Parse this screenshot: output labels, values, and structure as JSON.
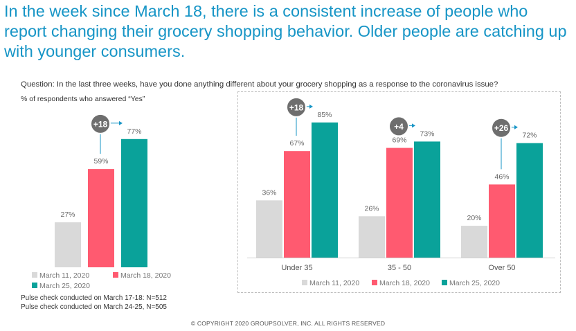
{
  "headline": "In the week since March 18, there is a consistent increase of people who report changing their grocery shopping behavior. Older people are catching up with younger consumers.",
  "question": "Question: In the last three weeks, have you done anything different about your grocery shopping as a response to the coronavirus issue?",
  "subquestion": "% of respondents who answered “Yes”",
  "legend": [
    "March 11, 2020",
    "March 18, 2020",
    "March 25, 2020"
  ],
  "colors": {
    "march11": "#d9d9d9",
    "march18": "#ff5a70",
    "march25": "#0aa29a",
    "badge": "#6e6e6e",
    "arrow": "#1795c6"
  },
  "notes": [
    "Pulse check conducted on March 17-18: N=512",
    "Pulse check conducted on March 24-25, N=505"
  ],
  "copyright": "© COPYRIGHT 2020 GROUPSOLVER, INC. ALL RIGHTS RESERVED",
  "chart_data": [
    {
      "type": "bar",
      "categories": [
        ""
      ],
      "series": [
        {
          "name": "March 11, 2020",
          "values": [
            27
          ]
        },
        {
          "name": "March 18, 2020",
          "values": [
            59
          ]
        },
        {
          "name": "March 25, 2020",
          "values": [
            77
          ]
        }
      ],
      "data_labels": [
        "27%",
        "59%",
        "77%"
      ],
      "annotations": [
        {
          "category": 0,
          "text": "+18"
        }
      ],
      "ylim": [
        0,
        100
      ],
      "grid": false,
      "legend": "bottom"
    },
    {
      "type": "bar",
      "categories": [
        "Under 35",
        "35 - 50",
        "Over 50"
      ],
      "series": [
        {
          "name": "March 11, 2020",
          "values": [
            36,
            26,
            20
          ]
        },
        {
          "name": "March 18, 2020",
          "values": [
            67,
            69,
            46
          ]
        },
        {
          "name": "March 25, 2020",
          "values": [
            85,
            73,
            72
          ]
        }
      ],
      "data_labels": [
        [
          "36%",
          "26%",
          "20%"
        ],
        [
          "67%",
          "69%",
          "46%"
        ],
        [
          "85%",
          "73%",
          "72%"
        ]
      ],
      "annotations": [
        {
          "category": 0,
          "text": "+18"
        },
        {
          "category": 1,
          "text": "+4"
        },
        {
          "category": 2,
          "text": "+26"
        }
      ],
      "ylim": [
        0,
        100
      ],
      "grid": false,
      "legend": "bottom"
    }
  ]
}
